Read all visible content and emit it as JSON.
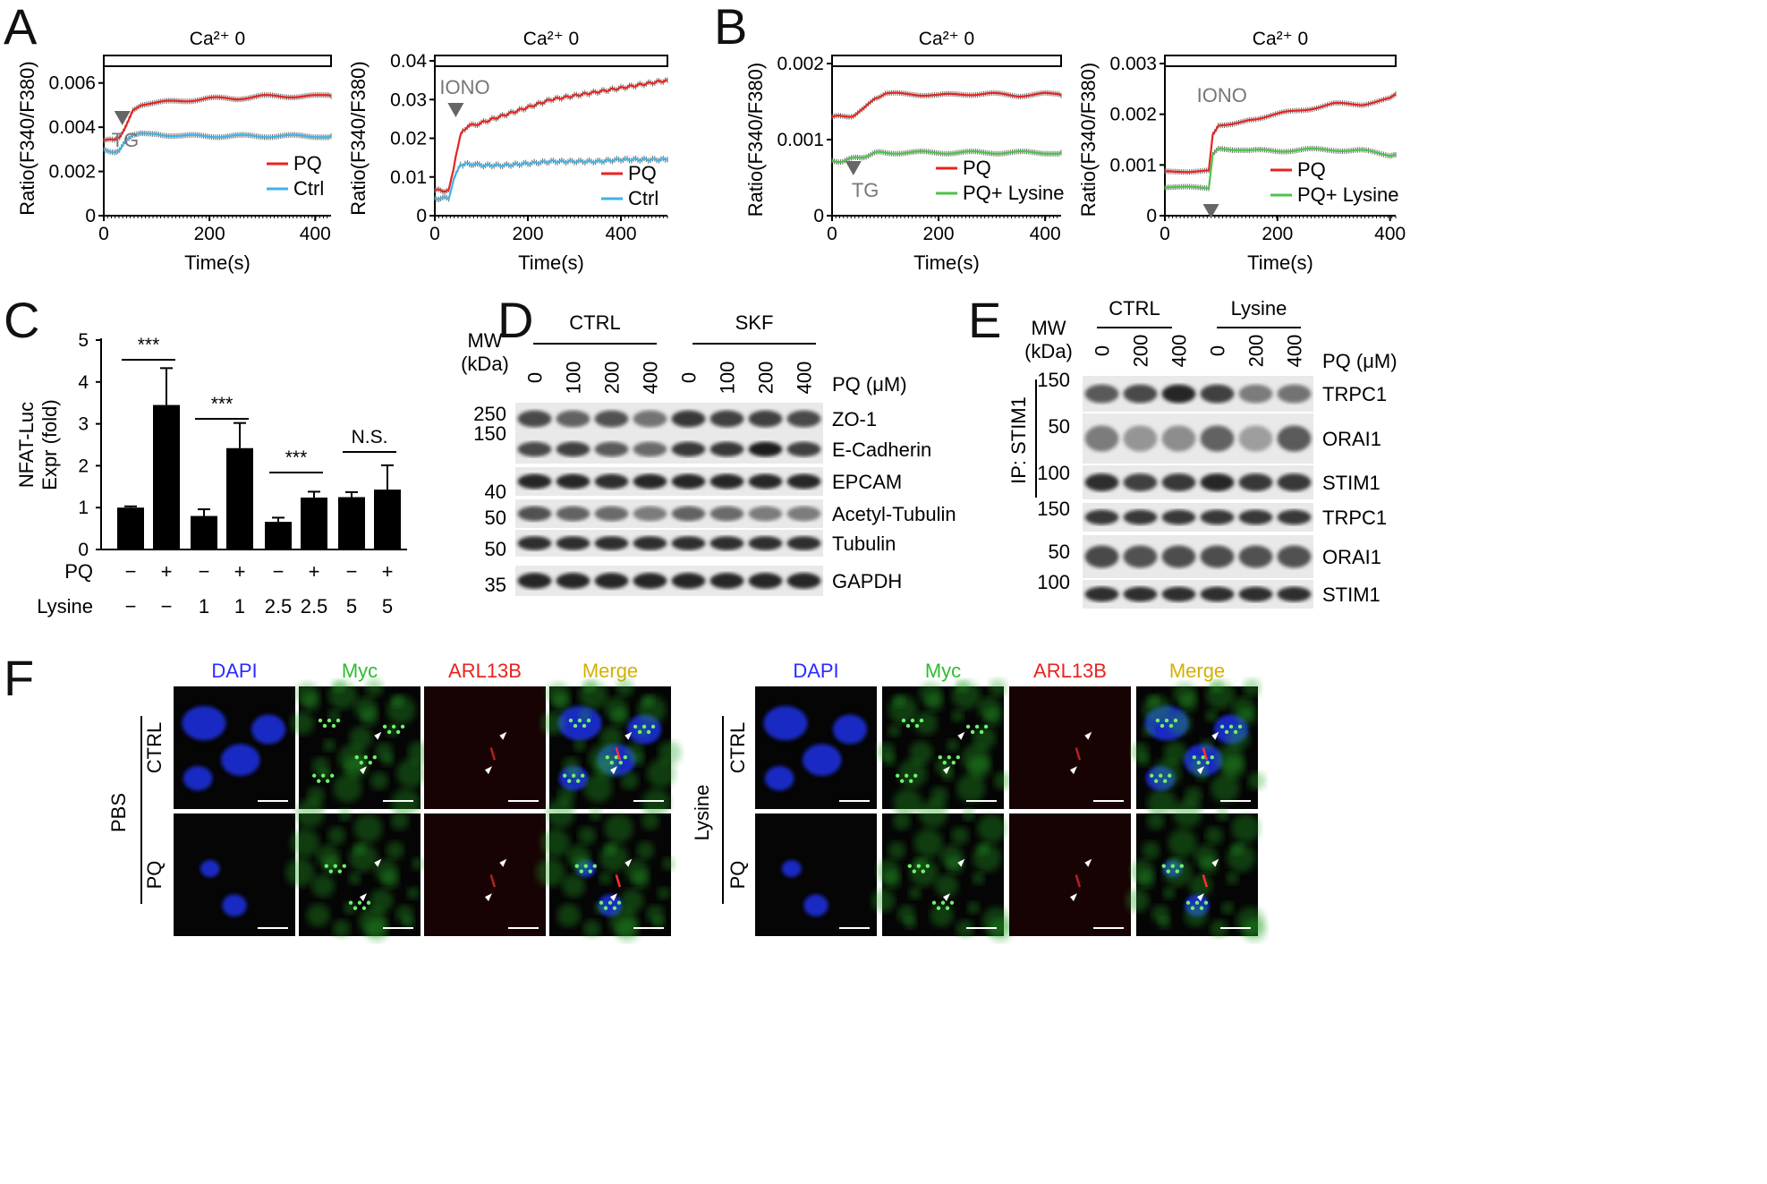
{
  "panels": {
    "A": {
      "letter": "A"
    },
    "B": {
      "letter": "B"
    },
    "C": {
      "letter": "C"
    },
    "D": {
      "letter": "D"
    },
    "E": {
      "letter": "E"
    },
    "F": {
      "letter": "F"
    }
  },
  "condition_label": "Ca²⁺ 0",
  "ylabel_ratio": "Ratio(F340/F380)",
  "xlabel_time": "Time(s)",
  "chart_data": [
    {
      "id": "A-left",
      "type": "line",
      "xlabel": "Time(s)",
      "ylabel": "Ratio(F340/F380)",
      "xlim": [
        0,
        430
      ],
      "ylim": [
        0,
        0.007
      ],
      "xticks": [
        0,
        200,
        400
      ],
      "yticks": [
        0,
        0.002,
        0.004,
        0.006
      ],
      "ytick_labels": [
        "0",
        "0.002",
        "0.004",
        "0.006"
      ],
      "annotation": "TG",
      "annotation_x": 35,
      "series": [
        {
          "name": "PQ",
          "color": "#e8231f",
          "x": [
            0,
            20,
            30,
            40,
            55,
            70,
            100,
            150,
            200,
            250,
            300,
            350,
            400,
            430
          ],
          "y": [
            0.0034,
            0.0034,
            0.0035,
            0.004,
            0.0048,
            0.005,
            0.0051,
            0.0052,
            0.0053,
            0.0053,
            0.0054,
            0.0054,
            0.0054,
            0.0054
          ]
        },
        {
          "name": "Ctrl",
          "color": "#3fb3e6",
          "x": [
            0,
            20,
            30,
            40,
            55,
            70,
            100,
            150,
            200,
            250,
            300,
            350,
            400,
            430
          ],
          "y": [
            0.003,
            0.0029,
            0.003,
            0.0033,
            0.0036,
            0.0037,
            0.0037,
            0.0036,
            0.0036,
            0.0036,
            0.0036,
            0.0036,
            0.0036,
            0.0036
          ]
        }
      ]
    },
    {
      "id": "A-right",
      "type": "line",
      "xlabel": "Time(s)",
      "ylabel": "Ratio(F340/F380)",
      "xlim": [
        0,
        500
      ],
      "ylim": [
        0,
        0.04
      ],
      "xticks": [
        0,
        200,
        400
      ],
      "yticks": [
        0,
        0.01,
        0.02,
        0.03,
        0.04
      ],
      "ytick_labels": [
        "0",
        "0.01",
        "0.02",
        "0.03",
        "0.04"
      ],
      "annotation": "IONO",
      "annotation_x": 45,
      "series": [
        {
          "name": "PQ",
          "color": "#e8231f",
          "x": [
            0,
            30,
            45,
            55,
            70,
            100,
            150,
            200,
            250,
            300,
            350,
            400,
            450,
            500
          ],
          "y": [
            0.0065,
            0.0065,
            0.015,
            0.021,
            0.023,
            0.024,
            0.026,
            0.028,
            0.03,
            0.031,
            0.032,
            0.033,
            0.034,
            0.035
          ]
        },
        {
          "name": "Ctrl",
          "color": "#3fb3e6",
          "x": [
            0,
            30,
            45,
            55,
            70,
            100,
            150,
            200,
            250,
            300,
            350,
            400,
            450,
            500
          ],
          "y": [
            0.0045,
            0.0045,
            0.011,
            0.013,
            0.0135,
            0.013,
            0.013,
            0.0135,
            0.014,
            0.014,
            0.014,
            0.0145,
            0.0145,
            0.0145
          ]
        }
      ]
    },
    {
      "id": "B-left",
      "type": "line",
      "xlabel": "Time(s)",
      "ylabel": "Ratio(F340/F380)",
      "xlim": [
        0,
        430
      ],
      "ylim": [
        0,
        0.002
      ],
      "xticks": [
        0,
        200,
        400
      ],
      "yticks": [
        0,
        0.001,
        0.002
      ],
      "ytick_labels": [
        "0",
        "0.001",
        "0.002"
      ],
      "annotation": "TG",
      "annotation_x": 40,
      "series": [
        {
          "name": "PQ",
          "color": "#e8231f",
          "x": [
            0,
            20,
            40,
            60,
            80,
            100,
            150,
            200,
            250,
            300,
            350,
            400,
            430
          ],
          "y": [
            0.0013,
            0.0013,
            0.00132,
            0.0014,
            0.00155,
            0.0016,
            0.0016,
            0.00158,
            0.0016,
            0.0016,
            0.00158,
            0.0016,
            0.00158
          ]
        },
        {
          "name": "PQ+ Lysine",
          "color": "#4cc24a",
          "x": [
            0,
            20,
            40,
            60,
            80,
            100,
            150,
            200,
            250,
            300,
            350,
            400,
            430
          ],
          "y": [
            0.00072,
            0.00072,
            0.00075,
            0.00078,
            0.00082,
            0.00083,
            0.00083,
            0.00083,
            0.00083,
            0.00083,
            0.00083,
            0.00083,
            0.00083
          ]
        }
      ]
    },
    {
      "id": "B-right",
      "type": "line",
      "xlabel": "Time(s)",
      "ylabel": "Ratio(F340/F380)",
      "xlim": [
        0,
        410
      ],
      "ylim": [
        0,
        0.003
      ],
      "xticks": [
        0,
        200,
        400
      ],
      "yticks": [
        0,
        0.001,
        0.002,
        0.003
      ],
      "ytick_labels": [
        "0",
        "0.001",
        "0.002",
        "0.003"
      ],
      "annotation": "IONO",
      "annotation_x": 82,
      "series": [
        {
          "name": "PQ",
          "color": "#e8231f",
          "x": [
            0,
            40,
            78,
            85,
            95,
            120,
            150,
            200,
            250,
            300,
            350,
            400,
            410
          ],
          "y": [
            0.00088,
            0.00088,
            0.00088,
            0.0016,
            0.0018,
            0.0018,
            0.0019,
            0.002,
            0.0021,
            0.0022,
            0.0022,
            0.0023,
            0.0024
          ]
        },
        {
          "name": "PQ+ Lysine",
          "color": "#4cc24a",
          "x": [
            0,
            40,
            78,
            85,
            95,
            120,
            150,
            200,
            250,
            300,
            350,
            400,
            410
          ],
          "y": [
            0.00055,
            0.00055,
            0.00055,
            0.0012,
            0.0013,
            0.0013,
            0.00128,
            0.00128,
            0.0013,
            0.0013,
            0.00128,
            0.0012,
            0.0012
          ]
        }
      ]
    },
    {
      "id": "C",
      "type": "bar",
      "ylabel": "NFAT-Luc Expr (fold)",
      "ylim": [
        0,
        5
      ],
      "yticks": [
        0,
        1,
        2,
        3,
        4,
        5
      ],
      "values": [
        1.0,
        3.45,
        0.8,
        2.42,
        0.66,
        1.24,
        1.25,
        1.43
      ],
      "errors": [
        0.03,
        0.88,
        0.16,
        0.6,
        0.1,
        0.14,
        0.12,
        0.58
      ],
      "PQ": [
        "−",
        "+",
        "−",
        "+",
        "−",
        "+",
        "−",
        "+"
      ],
      "Lysine": [
        "−",
        "−",
        "1",
        "1",
        "2.5",
        "2.5",
        "5",
        "5"
      ],
      "significance": [
        {
          "pair": [
            0,
            1
          ],
          "label": "***"
        },
        {
          "pair": [
            2,
            3
          ],
          "label": "***"
        },
        {
          "pair": [
            4,
            5
          ],
          "label": "***"
        },
        {
          "pair": [
            6,
            7
          ],
          "label": "N.S."
        }
      ]
    }
  ],
  "C_row_labels": {
    "pq": "PQ",
    "lysine": "Lysine"
  },
  "D": {
    "mw_label": "MW\n(kDa)",
    "groups": [
      "CTRL",
      "SKF"
    ],
    "lanes": [
      "0",
      "100",
      "200",
      "400",
      "0",
      "100",
      "200",
      "400"
    ],
    "pq_label": "PQ (μM)",
    "rows": [
      {
        "mw": "250",
        "name": "ZO-1"
      },
      {
        "mw": "150",
        "name": "E-Cadherin"
      },
      {
        "mw": "",
        "name": "EPCAM"
      },
      {
        "mw": "40",
        "name": "Acetyl-Tubulin"
      },
      {
        "mw": "50",
        "name": "Tubulin"
      },
      {
        "mw": "35",
        "name": "GAPDH"
      }
    ],
    "extra_mw": [
      "50"
    ]
  },
  "E": {
    "mw_label": "MW\n(kDa)",
    "groups": [
      "CTRL",
      "Lysine"
    ],
    "lanes": [
      "0",
      "200",
      "400",
      "0",
      "200",
      "400"
    ],
    "pq_label": "PQ (μM)",
    "ip_label": "IP: STIM1",
    "rows": [
      {
        "mw": "150",
        "name": "TRPC1"
      },
      {
        "mw": "50",
        "name": "ORAI1"
      },
      {
        "mw": "100",
        "name": "STIM1"
      },
      {
        "mw": "150",
        "name": "TRPC1"
      },
      {
        "mw": "50",
        "name": "ORAI1"
      },
      {
        "mw": "100",
        "name": "STIM1"
      }
    ]
  },
  "F": {
    "channels": [
      "DAPI",
      "Myc",
      "ARL13B",
      "Merge"
    ],
    "channel_colors": [
      "#2b2bff",
      "#2ebd2e",
      "#e8231f",
      "#d4b000"
    ],
    "left_group": "PBS",
    "right_group": "Lysine",
    "rows": [
      "CTRL",
      "PQ"
    ]
  }
}
